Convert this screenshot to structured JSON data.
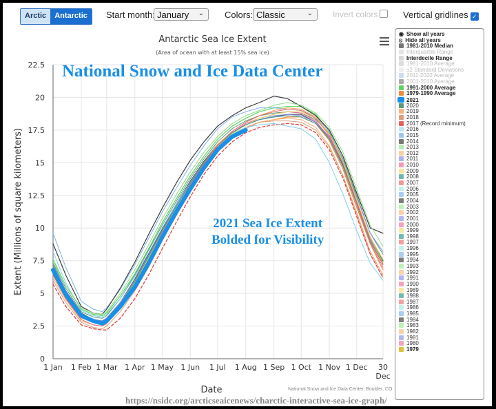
{
  "toolbar": {
    "hemisphere_buttons": [
      "Arctic",
      "Antarctic"
    ],
    "selected_hemisphere": "Antarctic",
    "start_month_label": "Start month:",
    "start_month_value": "January",
    "colors_label": "Colors:",
    "colors_value": "Classic",
    "invert_colors_label": "Invert colors",
    "invert_colors_checked": false,
    "vertical_gridlines_label": "Vertical gridlines",
    "vertical_gridlines_checked": true
  },
  "menu_icon": "hamburger-menu-icon",
  "annotations": {
    "watermark": "National Snow and Ice Data Center",
    "callout_line1": "2021 Sea Ice Extent",
    "callout_line2": "Bolded for Visibility",
    "credit": "National Snow and Ice Data Center, Boulder, CO",
    "url": "https://nsidc.org/arcticseaicenews/charctic-interactive-sea-ice-graph/"
  },
  "legend": {
    "controls": [
      {
        "icon": "eye-icon",
        "label": "Show all years"
      },
      {
        "icon": "eye-slash-icon",
        "label": "Hide all years"
      }
    ],
    "items": [
      {
        "label": "1981-2010 Median",
        "color": "#777777",
        "style": "bold"
      },
      {
        "label": "Interquartile Range",
        "color": "#e4e4e4",
        "style": "faded"
      },
      {
        "label": "Interdecile Range",
        "color": "#d8d8d8",
        "style": "bold"
      },
      {
        "label": "1981-2010 Average",
        "color": "#dddddd",
        "style": "faded"
      },
      {
        "label": "±2 Standard Deviations",
        "color": "#eeeeee",
        "style": "faded"
      },
      {
        "label": "2011-2020 Average",
        "color": "#c9def2",
        "style": "faded"
      },
      {
        "label": "2001-2010 Average",
        "color": "#aaaaaa",
        "style": "faded"
      },
      {
        "label": "1991-2000 Average",
        "color": "#5fd35f",
        "style": "bold"
      },
      {
        "label": "1979-1990 Average",
        "color": "#f08a3c",
        "style": "bold"
      },
      {
        "label": "2021",
        "color": "#1a8fe6",
        "style": "big"
      },
      {
        "label": "2020",
        "color": "#5a9a7a",
        "style": "normal"
      },
      {
        "label": "2019",
        "color": "#f6b27a",
        "style": "normal"
      },
      {
        "label": "2018",
        "color": "#d9a078",
        "style": "normal"
      },
      {
        "label": "2017 (Record minimum)",
        "color": "#e8605c",
        "style": "normal"
      },
      {
        "label": "2016",
        "color": "#bfe6f4",
        "style": "normal"
      },
      {
        "label": "2015",
        "color": "#9cc8f0",
        "style": "normal"
      },
      {
        "label": "2014",
        "color": "#777777",
        "style": "normal"
      },
      {
        "label": "2013",
        "color": "#b6ebb0",
        "style": "normal"
      },
      {
        "label": "2012",
        "color": "#fbcfa0",
        "style": "normal"
      },
      {
        "label": "2011",
        "color": "#aab4f0",
        "style": "normal"
      },
      {
        "label": "2010",
        "color": "#f59ab4",
        "style": "normal"
      },
      {
        "label": "2009",
        "color": "#f6e59a",
        "style": "normal"
      },
      {
        "label": "2008",
        "color": "#6fb8b0",
        "style": "normal"
      },
      {
        "label": "2007",
        "color": "#f29a9a",
        "style": "normal"
      },
      {
        "label": "2006",
        "color": "#c6f0ee",
        "style": "normal"
      },
      {
        "label": "2005",
        "color": "#a9cdf2",
        "style": "normal"
      },
      {
        "label": "2004",
        "color": "#7d7d7d",
        "style": "normal"
      },
      {
        "label": "2003",
        "color": "#bdf0b6",
        "style": "normal"
      },
      {
        "label": "2002",
        "color": "#fbd2a8",
        "style": "normal"
      },
      {
        "label": "2001",
        "color": "#b0b6f2",
        "style": "normal"
      },
      {
        "label": "2000",
        "color": "#f5a2bd",
        "style": "normal"
      },
      {
        "label": "1999",
        "color": "#f7e9a3",
        "style": "normal"
      },
      {
        "label": "1998",
        "color": "#73bcb4",
        "style": "normal"
      },
      {
        "label": "1997",
        "color": "#f2a0a0",
        "style": "normal"
      },
      {
        "label": "1996",
        "color": "#c6f0ee",
        "style": "normal"
      },
      {
        "label": "1995",
        "color": "#a9cdf2",
        "style": "normal"
      },
      {
        "label": "1994",
        "color": "#7d7d7d",
        "style": "normal"
      },
      {
        "label": "1993",
        "color": "#bdf0b6",
        "style": "normal"
      },
      {
        "label": "1992",
        "color": "#fbd2a8",
        "style": "normal"
      },
      {
        "label": "1991",
        "color": "#b0b6f2",
        "style": "normal"
      },
      {
        "label": "1990",
        "color": "#f5a2bd",
        "style": "normal"
      },
      {
        "label": "1989",
        "color": "#f7e9a3",
        "style": "normal"
      },
      {
        "label": "1988",
        "color": "#73bcb4",
        "style": "normal"
      },
      {
        "label": "1987",
        "color": "#f2a0a0",
        "style": "normal"
      },
      {
        "label": "1986",
        "color": "#c6f0ee",
        "style": "normal"
      },
      {
        "label": "1985",
        "color": "#a9cdf2",
        "style": "normal"
      },
      {
        "label": "1984",
        "color": "#7d7d7d",
        "style": "normal"
      },
      {
        "label": "1983",
        "color": "#bdf0b6",
        "style": "normal"
      },
      {
        "label": "1982",
        "color": "#fbd2a8",
        "style": "normal"
      },
      {
        "label": "1981",
        "color": "#b0b6f2",
        "style": "normal"
      },
      {
        "label": "1980",
        "color": "#f5a2bd",
        "style": "normal"
      },
      {
        "label": "1979",
        "color": "#d9c23a",
        "style": "bold"
      }
    ]
  },
  "chart_data": {
    "type": "line",
    "title": "Antarctic Sea Ice Extent",
    "subtitle": "(Area of ocean with at least 15% sea ice)",
    "xlabel": "Date",
    "ylabel": "Extent (Millions of square kilometers)",
    "ylim": [
      0,
      22.5
    ],
    "yticks": [
      0,
      2.5,
      5,
      7.5,
      10,
      12.5,
      15,
      17.5,
      20,
      22.5
    ],
    "xlim_day": [
      1,
      364
    ],
    "xticks": [
      {
        "day": 1,
        "label": "1 Jan"
      },
      {
        "day": 32,
        "label": "1 Feb"
      },
      {
        "day": 60,
        "label": "1 Mar"
      },
      {
        "day": 91,
        "label": "1 Apr"
      },
      {
        "day": 121,
        "label": "1 May"
      },
      {
        "day": 152,
        "label": "1 Jun"
      },
      {
        "day": 182,
        "label": "1 Jul"
      },
      {
        "day": 213,
        "label": "1 Aug"
      },
      {
        "day": 244,
        "label": "1 Sep"
      },
      {
        "day": 274,
        "label": "1 Oct"
      },
      {
        "day": 305,
        "label": "1 Nov"
      },
      {
        "day": 335,
        "label": "1 Dec"
      },
      {
        "day": 364,
        "label": "30 Dec"
      }
    ],
    "grid": {
      "horizontal": true,
      "vertical": true
    },
    "legend_position": "right",
    "days": [
      1,
      15,
      32,
      45,
      55,
      60,
      75,
      91,
      106,
      121,
      137,
      152,
      167,
      182,
      198,
      213,
      228,
      244,
      259,
      274,
      290,
      305,
      320,
      335,
      350,
      364
    ],
    "series": [
      {
        "name": "2021",
        "color": "#1a8fe6",
        "width": 6,
        "values": [
          6.8,
          4.9,
          3.3,
          2.9,
          2.7,
          2.9,
          4.0,
          5.5,
          7.3,
          9.3,
          11.3,
          13.0,
          14.6,
          16.0,
          17.0,
          17.5
        ]
      },
      {
        "name": "1981-2010 Median",
        "color": "#555555",
        "width": 1.2,
        "values": [
          7.1,
          5.2,
          3.5,
          3.0,
          2.9,
          3.1,
          4.3,
          6.1,
          8.0,
          9.9,
          11.9,
          13.6,
          15.1,
          16.4,
          17.3,
          17.9,
          18.3,
          18.5,
          18.7,
          18.7,
          18.1,
          16.9,
          14.8,
          12.0,
          9.3,
          7.5
        ]
      },
      {
        "name": "1991-2000 Average",
        "color": "#5fd35f",
        "width": 1.2,
        "values": [
          7.6,
          5.6,
          3.8,
          3.4,
          3.3,
          3.5,
          4.8,
          6.5,
          8.4,
          10.4,
          12.3,
          14.0,
          15.5,
          16.8,
          17.8,
          18.4,
          18.9,
          19.2,
          19.3,
          19.3,
          18.7,
          17.4,
          15.2,
          12.2,
          9.2,
          7.4
        ]
      },
      {
        "name": "1979-1990 Average",
        "color": "#f08a3c",
        "width": 1.2,
        "values": [
          6.9,
          5.0,
          3.2,
          2.8,
          2.7,
          2.9,
          4.0,
          5.7,
          7.6,
          9.5,
          11.5,
          13.2,
          14.8,
          16.1,
          17.1,
          17.7,
          18.1,
          18.3,
          18.5,
          18.5,
          18.0,
          16.7,
          14.5,
          11.6,
          8.8,
          6.8
        ]
      },
      {
        "name": "2020",
        "color": "#5a9a7a",
        "width": 1,
        "values": [
          7.3,
          5.4,
          3.6,
          3.2,
          3.1,
          3.3,
          4.6,
          6.4,
          8.3,
          10.2,
          12.1,
          13.8,
          15.3,
          16.6,
          17.6,
          18.2,
          18.6,
          18.8,
          18.9,
          18.8,
          18.3,
          17.3,
          15.3,
          12.5,
          9.6,
          8.0
        ]
      },
      {
        "name": "2019",
        "color": "#f6b27a",
        "width": 1,
        "values": [
          6.2,
          4.5,
          2.9,
          2.6,
          2.5,
          2.7,
          3.8,
          5.4,
          7.2,
          9.2,
          11.2,
          13.0,
          14.6,
          15.9,
          16.9,
          17.6,
          18.1,
          18.3,
          18.4,
          18.3,
          17.7,
          16.3,
          14.0,
          11.0,
          8.0,
          6.2
        ]
      },
      {
        "name": "2018",
        "color": "#d9a078",
        "width": 1,
        "values": [
          6.0,
          4.3,
          2.8,
          2.4,
          2.3,
          2.5,
          3.6,
          5.2,
          7.0,
          9.0,
          11.0,
          12.8,
          14.5,
          15.9,
          17.0,
          17.7,
          18.1,
          18.2,
          18.2,
          18.1,
          17.5,
          16.2,
          14.0,
          11.2,
          8.2,
          6.4
        ]
      },
      {
        "name": "2017 (Record minimum)",
        "color": "#e0403c",
        "width": 1.3,
        "dashed": true,
        "values": [
          5.7,
          4.0,
          2.6,
          2.3,
          2.2,
          2.2,
          3.1,
          4.6,
          6.4,
          8.4,
          10.5,
          12.4,
          14.1,
          15.5,
          16.6,
          17.3,
          17.7,
          17.9,
          18.0,
          17.9,
          17.3,
          16.0,
          13.8,
          10.9,
          8.0,
          6.2
        ]
      },
      {
        "name": "2016",
        "color": "#7fd0ec",
        "width": 1,
        "values": [
          8.2,
          5.8,
          3.7,
          3.3,
          3.2,
          3.4,
          4.6,
          6.3,
          8.1,
          10.0,
          11.9,
          13.5,
          15.0,
          16.3,
          17.2,
          17.7,
          17.9,
          18.0,
          17.8,
          17.6,
          16.8,
          15.0,
          12.6,
          9.8,
          7.3,
          6.0
        ]
      },
      {
        "name": "2015",
        "color": "#7fb3e8",
        "width": 1,
        "values": [
          9.6,
          7.0,
          4.4,
          3.8,
          3.6,
          3.9,
          5.3,
          7.2,
          9.2,
          11.2,
          13.1,
          14.8,
          16.3,
          17.6,
          18.5,
          18.9,
          19.2,
          19.2,
          19.1,
          19.0,
          18.5,
          17.4,
          15.2,
          12.2,
          9.2,
          7.6
        ]
      },
      {
        "name": "2014",
        "color": "#3c3c3c",
        "width": 1.2,
        "values": [
          8.8,
          6.4,
          4.0,
          3.5,
          3.4,
          3.8,
          5.4,
          7.4,
          9.5,
          11.5,
          13.5,
          15.2,
          16.6,
          17.8,
          18.6,
          19.2,
          19.6,
          20.1,
          19.9,
          19.3,
          18.6,
          17.5,
          15.5,
          12.7,
          10.0,
          9.6
        ]
      },
      {
        "name": "2013",
        "color": "#8fdc88",
        "width": 1,
        "values": [
          7.4,
          5.6,
          3.9,
          3.5,
          3.4,
          3.6,
          5.0,
          6.8,
          8.7,
          10.7,
          12.6,
          14.3,
          15.8,
          17.0,
          18.0,
          18.6,
          19.0,
          19.4,
          19.6,
          19.4,
          18.8,
          17.7,
          15.8,
          13.0,
          10.2,
          8.6
        ]
      },
      {
        "name": "2012",
        "color": "#f7a860",
        "width": 1,
        "values": [
          7.0,
          5.0,
          3.3,
          2.9,
          2.8,
          3.0,
          4.2,
          5.9,
          7.8,
          9.7,
          11.7,
          13.5,
          15.0,
          16.4,
          17.4,
          18.1,
          18.6,
          19.0,
          19.2,
          19.1,
          18.5,
          17.2,
          15.0,
          12.1,
          9.1,
          7.3
        ]
      },
      {
        "name": "2011",
        "color": "#8090e0",
        "width": 1,
        "values": [
          7.2,
          5.2,
          3.4,
          3.0,
          2.9,
          3.1,
          4.3,
          6.0,
          7.9,
          9.8,
          11.8,
          13.5,
          15.0,
          16.3,
          17.3,
          17.9,
          18.3,
          18.6,
          18.7,
          18.6,
          18.1,
          17.0,
          15.0,
          12.4,
          9.6,
          8.2
        ]
      },
      {
        "name": "2010",
        "color": "#e86a90",
        "width": 1,
        "values": [
          6.6,
          4.8,
          3.2,
          2.8,
          2.7,
          2.9,
          4.1,
          5.8,
          7.7,
          9.7,
          11.7,
          13.4,
          15.0,
          16.3,
          17.3,
          18.0,
          18.4,
          18.7,
          18.9,
          18.8,
          18.2,
          16.9,
          14.7,
          11.8,
          8.9,
          7.0
        ]
      },
      {
        "name": "2009",
        "color": "#e8d060",
        "width": 1,
        "values": [
          6.8,
          4.9,
          3.1,
          2.8,
          2.7,
          2.9,
          4.1,
          5.8,
          7.7,
          9.6,
          11.6,
          13.3,
          14.9,
          16.2,
          17.2,
          17.9,
          18.4,
          18.7,
          18.9,
          18.9,
          18.4,
          17.2,
          15.1,
          12.2,
          9.3,
          7.6
        ]
      },
      {
        "name": "2008",
        "color": "#3fa098",
        "width": 1,
        "values": [
          7.1,
          5.1,
          3.3,
          2.9,
          2.8,
          3.0,
          4.2,
          5.9,
          7.8,
          9.8,
          11.7,
          13.4,
          15.0,
          16.3,
          17.3,
          17.9,
          18.3,
          18.5,
          18.6,
          18.5,
          18.0,
          16.8,
          14.7,
          11.9,
          9.0,
          7.2
        ]
      },
      {
        "name": "2007",
        "color": "#e26a6a",
        "width": 1,
        "values": [
          6.4,
          4.6,
          3.0,
          2.6,
          2.5,
          2.7,
          3.9,
          5.6,
          7.5,
          9.5,
          11.5,
          13.3,
          14.9,
          16.3,
          17.4,
          18.1,
          18.6,
          18.9,
          19.1,
          19.0,
          18.4,
          17.1,
          14.9,
          12.0,
          9.1,
          7.2
        ]
      }
    ]
  }
}
